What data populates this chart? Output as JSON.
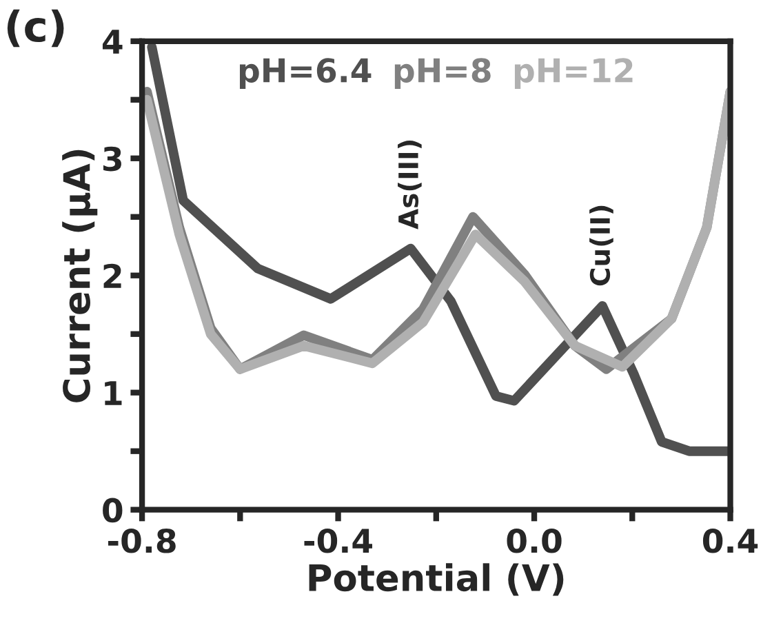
{
  "chart_data": {
    "type": "line",
    "xlabel": "Potential (V)",
    "ylabel": "Current (μA)",
    "xlim": [
      -0.8,
      0.4
    ],
    "xticks": [
      -0.8,
      {
        "value": -0.6,
        "label": null
      },
      -0.4,
      {
        "value": -0.2,
        "label": null
      },
      {
        "value": 0,
        "label": "0.0"
      },
      {
        "value": 0.2,
        "label": null
      },
      0.4
    ],
    "ylim": [
      0,
      4
    ],
    "yticks": [
      0,
      {
        "value": 0.5,
        "label": null
      },
      1,
      {
        "value": 1.5,
        "label": null
      },
      2,
      {
        "value": 2.5,
        "label": null
      },
      3,
      {
        "value": 3.5,
        "label": null
      },
      4
    ],
    "legend": "top",
    "grid": false,
    "marker": "none",
    "line_style": "solid",
    "annotations": [
      "(c)",
      {
        "text": "As(III)",
        "x": -0.252,
        "y": 2.23
      },
      {
        "text": "Cu(II)",
        "x": 0.139,
        "y": 1.74
      }
    ],
    "series": [
      {
        "name": "pH=6.4",
        "color": "#505050",
        "x": [
          -0.78,
          -0.716,
          -0.564,
          -0.415,
          -0.252,
          -0.17,
          -0.078,
          -0.041,
          0.139,
          0.203,
          0.26,
          0.316,
          0.4
        ],
        "values": [
          3.95,
          2.64,
          2.06,
          1.8,
          2.23,
          1.78,
          0.97,
          0.93,
          1.74,
          1.16,
          0.58,
          0.5,
          0.5
        ]
      },
      {
        "name": "pH=8",
        "color": "#808080",
        "x": [
          -0.79,
          -0.724,
          -0.66,
          -0.6,
          -0.47,
          -0.33,
          -0.227,
          -0.125,
          -0.02,
          0.083,
          0.147,
          0.28,
          0.352,
          0.4
        ],
        "values": [
          3.57,
          2.41,
          1.55,
          1.2,
          1.49,
          1.28,
          1.71,
          2.5,
          2.01,
          1.4,
          1.2,
          1.63,
          2.41,
          3.57
        ]
      },
      {
        "name": "pH=12",
        "color": "#b0b0b0",
        "x": [
          -0.79,
          -0.724,
          -0.66,
          -0.6,
          -0.47,
          -0.33,
          -0.227,
          -0.12,
          -0.02,
          0.083,
          0.18,
          0.28,
          0.352,
          0.4
        ],
        "values": [
          3.5,
          2.35,
          1.5,
          1.2,
          1.4,
          1.25,
          1.6,
          2.35,
          1.95,
          1.4,
          1.22,
          1.63,
          2.41,
          3.57
        ]
      }
    ]
  }
}
